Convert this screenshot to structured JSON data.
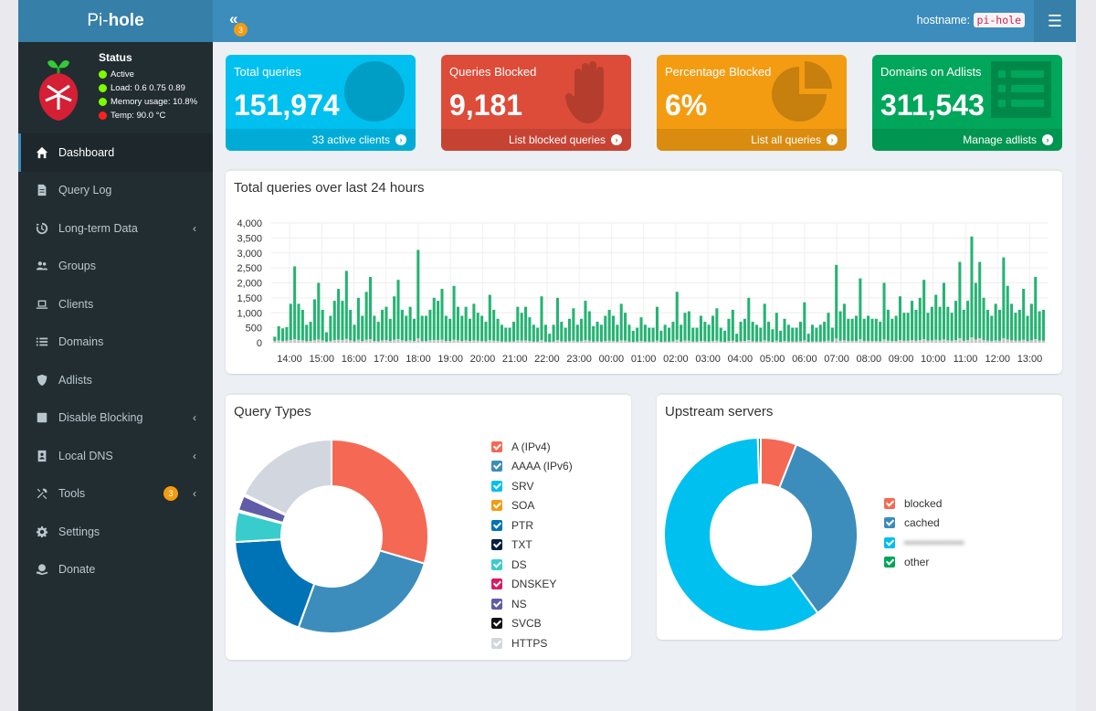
{
  "brand": {
    "pre": "Pi-",
    "bold": "hole"
  },
  "status": {
    "title": "Status",
    "active": "Active",
    "load": "Load:  0.6  0.75  0.89",
    "memory": "Memory usage:  10.8%",
    "temp": "Temp: 90.0 °C"
  },
  "menu": [
    {
      "label": "Dashboard",
      "icon": "home-icon"
    },
    {
      "label": "Query Log",
      "icon": "file-icon"
    },
    {
      "label": "Long-term Data",
      "icon": "history-icon"
    },
    {
      "label": "Groups",
      "icon": "users-icon"
    },
    {
      "label": "Clients",
      "icon": "laptop-icon"
    },
    {
      "label": "Domains",
      "icon": "list-icon"
    },
    {
      "label": "Adlists",
      "icon": "shield-icon"
    },
    {
      "label": "Disable Blocking",
      "icon": "stop-icon"
    },
    {
      "label": "Local DNS",
      "icon": "address-book-icon"
    },
    {
      "label": "Tools",
      "icon": "tools-icon",
      "badge": "3"
    },
    {
      "label": "Settings",
      "icon": "gear-icon"
    },
    {
      "label": "Donate",
      "icon": "donate-icon"
    }
  ],
  "header": {
    "toggle_badge": "3",
    "hostname_label": "hostname:",
    "hostname_value": "pi-hole"
  },
  "stats": [
    {
      "label": "Total queries",
      "value": "151,974",
      "footer": "33 active clients",
      "color": "#00c0ef"
    },
    {
      "label": "Queries Blocked",
      "value": "9,181",
      "footer": "List blocked queries",
      "color": "#dd4b39"
    },
    {
      "label": "Percentage Blocked",
      "value": "6%",
      "footer": "List all queries",
      "color": "#f39c12"
    },
    {
      "label": "Domains on Adlists",
      "value": "311,543",
      "footer": "Manage adlists",
      "color": "#00a65a"
    }
  ],
  "chart_data": [
    {
      "type": "bar",
      "title": "Total queries over last 24 hours",
      "ylim": [
        0,
        4000
      ],
      "yticks": [
        "0",
        "500",
        "1,000",
        "1,500",
        "2,000",
        "2,500",
        "3,000",
        "3,500",
        "4,000"
      ],
      "xticks": [
        "14:00",
        "15:00",
        "16:00",
        "17:00",
        "18:00",
        "19:00",
        "20:00",
        "21:00",
        "22:00",
        "23:00",
        "00:00",
        "01:00",
        "02:00",
        "03:00",
        "04:00",
        "05:00",
        "06:00",
        "07:00",
        "08:00",
        "09:00",
        "10:00",
        "11:00",
        "12:00",
        "13:00"
      ],
      "series": [
        {
          "color": "#00a65a",
          "values": [
            200,
            550,
            480,
            520,
            1300,
            2550,
            1300,
            1100,
            600,
            700,
            1450,
            2000,
            1100,
            350,
            900,
            1400,
            1800,
            1400,
            2400,
            1100,
            600,
            1500,
            900,
            1700,
            2200,
            900,
            700,
            1100,
            1200,
            800,
            1550,
            2100,
            1100,
            900,
            1200,
            800,
            3100,
            900,
            900,
            1100,
            1500,
            1400,
            1800,
            900,
            800,
            1900,
            1200,
            900,
            1200,
            800,
            1300,
            1000,
            900,
            700,
            1600,
            1100,
            800,
            600,
            500,
            500,
            700,
            1200,
            1000,
            1200,
            850,
            600,
            500,
            1550,
            600,
            300,
            600,
            1500,
            700,
            500,
            800,
            1150,
            600,
            800,
            1400,
            1050,
            550,
            700,
            600,
            900,
            1100,
            900,
            600,
            1300,
            1000,
            600,
            400,
            500,
            850,
            600,
            500,
            500,
            1200,
            400,
            600,
            500,
            700,
            1700,
            600,
            1000,
            1050,
            500,
            500,
            900,
            700,
            600,
            900,
            1150,
            500,
            400,
            800,
            1100,
            300,
            700,
            800,
            1500,
            700,
            600,
            500,
            1300,
            700,
            450,
            1000,
            400,
            800,
            600,
            500,
            500,
            700,
            1350,
            300,
            600,
            500,
            600,
            700,
            1000,
            500,
            2600,
            1050,
            1300,
            800,
            800,
            900,
            2150,
            800,
            900,
            800,
            800,
            700,
            2000,
            1100,
            800,
            900,
            1550,
            1000,
            1000,
            1400,
            1100,
            1500,
            2100,
            1000,
            1200,
            1600,
            1200,
            2000,
            1200,
            1000,
            1400,
            2700,
            1100,
            1400,
            3550,
            2000,
            2700,
            1500,
            1100,
            900,
            1300,
            1100,
            2850,
            1900,
            1300,
            1000,
            1100,
            1800,
            900,
            1300,
            2200,
            1050,
            1100
          ]
        },
        {
          "color": "#999999",
          "values": [
            60,
            80,
            60,
            70,
            90,
            120,
            90,
            80,
            50,
            60,
            90,
            110,
            80,
            40,
            60,
            90,
            100,
            90,
            130,
            80,
            50,
            100,
            60,
            100,
            120,
            60,
            50,
            80,
            90,
            60,
            100,
            120,
            80,
            60,
            80,
            60,
            150,
            60,
            60,
            80,
            90,
            90,
            100,
            60,
            60,
            100,
            80,
            60,
            80,
            60,
            80,
            70,
            60,
            50,
            90,
            70,
            60,
            40,
            40,
            40,
            50,
            80,
            70,
            80,
            60,
            40,
            40,
            90,
            40,
            30,
            40,
            90,
            50,
            40,
            60,
            70,
            40,
            60,
            90,
            70,
            40,
            50,
            40,
            60,
            70,
            60,
            40,
            80,
            70,
            40,
            30,
            40,
            60,
            40,
            40,
            40,
            70,
            30,
            40,
            40,
            50,
            100,
            40,
            70,
            70,
            40,
            40,
            60,
            50,
            40,
            60,
            70,
            40,
            30,
            60,
            70,
            30,
            50,
            60,
            90,
            50,
            40,
            40,
            80,
            50,
            30,
            70,
            30,
            60,
            40,
            40,
            40,
            50,
            80,
            30,
            40,
            40,
            40,
            50,
            70,
            40,
            140,
            70,
            80,
            60,
            60,
            60,
            120,
            60,
            60,
            60,
            60,
            50,
            110,
            70,
            60,
            60,
            90,
            70,
            70,
            90,
            70,
            90,
            120,
            70,
            80,
            100,
            80,
            110,
            80,
            70,
            90,
            150,
            70,
            90,
            180,
            110,
            150,
            90,
            70,
            60,
            80,
            70,
            150,
            110,
            80,
            70,
            70,
            100,
            60,
            80,
            120,
            70,
            70
          ]
        }
      ]
    },
    {
      "type": "pie",
      "title": "Query Types",
      "categories": [
        "A (IPv4)",
        "AAAA (IPv6)",
        "SRV",
        "SOA",
        "PTR",
        "TXT",
        "DS",
        "DNSKEY",
        "NS",
        "SVCB",
        "HTTPS"
      ],
      "colors": [
        "#f56954",
        "#3c8dbc",
        "#00c0ef",
        "#f39c12",
        "#0073b7",
        "#001f3f",
        "#39cccc",
        "#d81b60",
        "#605ca8",
        "#111111",
        "#d2d6de"
      ],
      "values": [
        29.5,
        26,
        0.01,
        0.01,
        18.5,
        0.01,
        5,
        0.3,
        2.5,
        0.3,
        17.8
      ]
    },
    {
      "type": "pie",
      "title": "Upstream servers",
      "categories": [
        "blocked",
        "cached",
        "",
        "other"
      ],
      "colors": [
        "#f56954",
        "#3c8dbc",
        "#00c0ef",
        "#00a65a"
      ],
      "values": [
        6,
        34,
        59.5,
        0.5
      ]
    }
  ],
  "upstream_third_label_obscured": "••••••••••••••"
}
